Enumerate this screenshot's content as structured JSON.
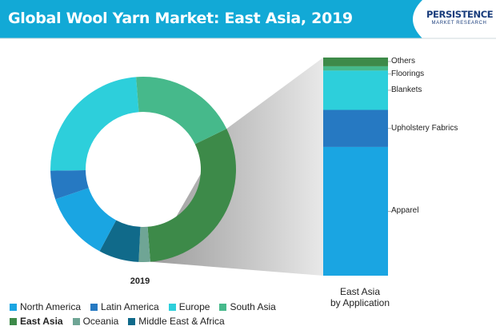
{
  "title": "Global Wool Yarn Market: East Asia, 2019",
  "logo": {
    "main": "PERSISTENCE",
    "sub": "MARKET RESEARCH"
  },
  "colors": {
    "banner": "#12a9d6",
    "North America": "#1aa5e2",
    "Latin America": "#2679c2",
    "Europe": "#2dcfdb",
    "South Asia": "#46b98b",
    "East Asia": "#3d8a49",
    "Oceania": "#6fa595",
    "Middle East & Africa": "#106a8a",
    "Apparel": "#1aa5e2",
    "Upholstery Fabrics": "#2679c2",
    "Blankets": "#2dcfdb",
    "Floorings": "#46b98b",
    "Others": "#3d8a49"
  },
  "chart_data": [
    {
      "type": "pie",
      "title": "2019",
      "categories": [
        "East Asia",
        "Oceania",
        "Middle East & Africa",
        "North America",
        "Latin America",
        "Europe",
        "South Asia"
      ],
      "values": [
        31,
        2,
        7,
        12,
        5,
        24,
        19
      ],
      "highlight": "East Asia",
      "legend": [
        "North America",
        "Latin America",
        "Europe",
        "South Asia",
        "East Asia",
        "Oceania",
        "Middle East & Africa"
      ]
    },
    {
      "type": "bar",
      "stacked": true,
      "title_lines": [
        "East Asia",
        "by Application"
      ],
      "categories": [
        "Apparel",
        "Upholstery Fabrics",
        "Blankets",
        "Floorings",
        "Others"
      ],
      "values": [
        59,
        17,
        18,
        2,
        4
      ]
    }
  ]
}
